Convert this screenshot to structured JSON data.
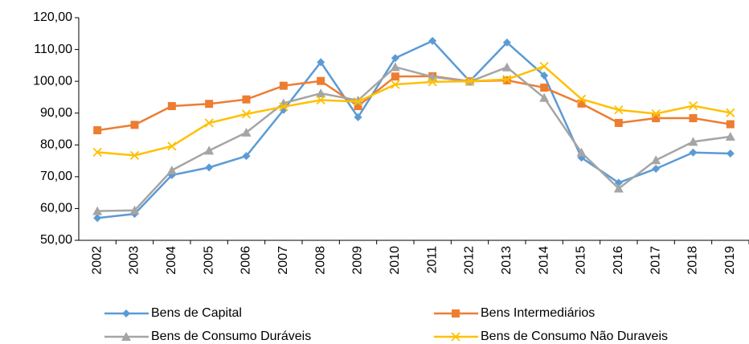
{
  "chart_data": {
    "type": "line",
    "categories": [
      "2002",
      "2003",
      "2004",
      "2005",
      "2006",
      "2007",
      "2008",
      "2009",
      "2010",
      "2011",
      "2012",
      "2013",
      "2014",
      "2015",
      "2016",
      "2017",
      "2018",
      "2019"
    ],
    "series": [
      {
        "name": "Bens de Capital",
        "color": "#5b9bd5",
        "marker": "diamond",
        "values": [
          57.0,
          58.3,
          70.5,
          72.9,
          76.5,
          91.0,
          106.0,
          88.7,
          107.3,
          112.7,
          100.0,
          112.2,
          101.8,
          76.0,
          68.1,
          72.5,
          77.6,
          77.3
        ]
      },
      {
        "name": "Bens Intermediários",
        "color": "#ed7d31",
        "marker": "square",
        "values": [
          84.6,
          86.3,
          92.2,
          92.9,
          94.3,
          98.6,
          100.1,
          92.2,
          101.5,
          101.6,
          100.0,
          100.3,
          98.0,
          93.0,
          86.9,
          88.4,
          88.4,
          86.5
        ]
      },
      {
        "name": "Bens de Consumo Duráveis",
        "color": "#a5a5a5",
        "marker": "triangle",
        "values": [
          59.2,
          59.4,
          72.0,
          78.2,
          83.9,
          93.1,
          96.2,
          94.0,
          104.5,
          101.4,
          99.9,
          104.4,
          94.8,
          77.6,
          66.3,
          75.2,
          81.0,
          82.6
        ]
      },
      {
        "name": "Bens de Consumo Não Duraveis",
        "color": "#ffc000",
        "marker": "x",
        "values": [
          77.7,
          76.7,
          79.6,
          86.9,
          89.7,
          92.0,
          94.1,
          93.6,
          99.0,
          99.8,
          100.0,
          100.6,
          104.7,
          94.4,
          91.0,
          89.8,
          92.3,
          90.1
        ]
      }
    ],
    "ylim": [
      50,
      120
    ],
    "yticks": [
      {
        "value": 50,
        "label": "50,00"
      },
      {
        "value": 60,
        "label": "60,00"
      },
      {
        "value": 70,
        "label": "70,00"
      },
      {
        "value": 80,
        "label": "80,00"
      },
      {
        "value": 90,
        "label": "90,00"
      },
      {
        "value": 100,
        "label": "100,00"
      },
      {
        "value": 110,
        "label": "110,00"
      },
      {
        "value": 120,
        "label": "120,00"
      }
    ],
    "grid": false,
    "legend": "bottom"
  }
}
